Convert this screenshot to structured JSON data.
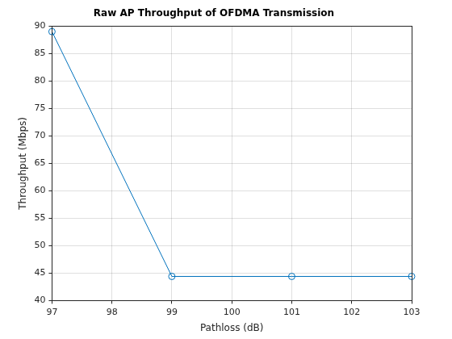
{
  "chart_data": {
    "type": "line",
    "title": "Raw AP Throughput of OFDMA Transmission",
    "x_label": "Pathloss (dB)",
    "y_label": "Throughput (Mbps)",
    "x": [
      97,
      99,
      101,
      103
    ],
    "values": [
      89,
      44.4,
      44.4,
      44.4
    ],
    "color": "#0072bd",
    "marker": "circle",
    "line_style": "solid",
    "xlim": [
      97,
      103
    ],
    "xticks": [
      97,
      98,
      99,
      100,
      101,
      102,
      103
    ],
    "ylim": [
      40,
      90
    ],
    "yticks": [
      40,
      45,
      50,
      55,
      60,
      65,
      70,
      75,
      80,
      85,
      90
    ],
    "grid": true
  }
}
